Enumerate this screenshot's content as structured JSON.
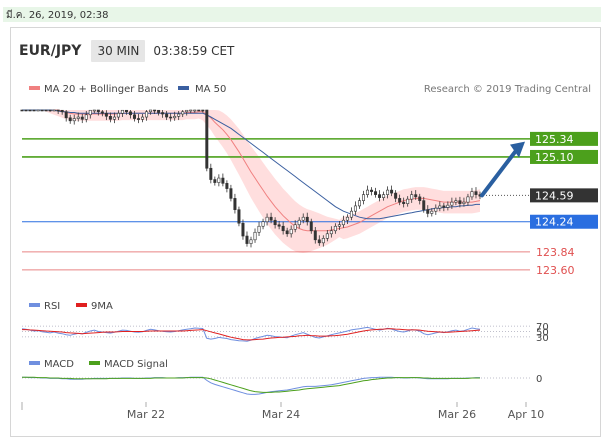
{
  "date_strip": "มี.ค. 26, 2019, 02:38",
  "header": {
    "pair": "EUR/JPY",
    "timeframe": "30 MIN",
    "time": "03:38:59 CET"
  },
  "credit": "Research © 2019 Trading Central",
  "colors": {
    "ma20": "#f08080",
    "ma50": "#3a5fa0",
    "resistance": "#4ca01c",
    "support_blue": "#2a6ee0",
    "support_red": "#e05050",
    "bollinger": "#ffd8d8",
    "rsi": "#6f8fdf",
    "nine_ma": "#e02020",
    "macd": "#6f8fdf",
    "macd_signal": "#4ca01c",
    "current_price_bg": "#333333",
    "arrow": "#2a5fa0"
  },
  "chart_data": [
    {
      "type": "candlestick",
      "legend": [
        {
          "name": "MA 20 + Bollinger Bands"
        },
        {
          "name": "MA 50"
        }
      ],
      "x_ticks": [
        "Mar 22",
        "Mar 24",
        "Mar 26",
        "Apr 10"
      ],
      "ylim": [
        123.4,
        125.75
      ],
      "levels": [
        {
          "label": "125.34",
          "value": 125.34,
          "kind": "resistance"
        },
        {
          "label": "125.10",
          "value": 125.1,
          "kind": "resistance"
        },
        {
          "label": "124.59",
          "value": 124.59,
          "kind": "current"
        },
        {
          "label": "124.24",
          "value": 124.24,
          "kind": "support_blue"
        },
        {
          "label": "123.84",
          "value": 123.84,
          "kind": "support_red"
        },
        {
          "label": "123.60",
          "value": 123.6,
          "kind": "support_red"
        }
      ],
      "candles_close": [
        125.9,
        125.88,
        125.85,
        125.83,
        125.84,
        125.8,
        125.78,
        125.75,
        125.77,
        125.72,
        125.7,
        125.62,
        125.58,
        125.61,
        125.63,
        125.6,
        125.66,
        125.72,
        125.75,
        125.7,
        125.68,
        125.64,
        125.6,
        125.63,
        125.68,
        125.72,
        125.7,
        125.66,
        125.61,
        125.6,
        125.63,
        125.7,
        125.74,
        125.72,
        125.69,
        125.67,
        125.63,
        125.62,
        125.64,
        125.67,
        125.7,
        125.72,
        125.74,
        125.77,
        125.75,
        125.74,
        124.95,
        124.8,
        124.76,
        124.82,
        124.75,
        124.68,
        124.55,
        124.4,
        124.22,
        124.05,
        123.95,
        124.0,
        124.1,
        124.18,
        124.24,
        124.3,
        124.26,
        124.2,
        124.18,
        124.12,
        124.08,
        124.14,
        124.2,
        124.26,
        124.3,
        124.24,
        124.12,
        124.0,
        123.96,
        124.02,
        124.08,
        124.12,
        124.18,
        124.2,
        124.26,
        124.3,
        124.38,
        124.45,
        124.52,
        124.6,
        124.66,
        124.64,
        124.6,
        124.56,
        124.6,
        124.66,
        124.62,
        124.55,
        124.5,
        124.48,
        124.54,
        124.6,
        124.57,
        124.52,
        124.4,
        124.35,
        124.38,
        124.42,
        124.45,
        124.43,
        124.46,
        124.5,
        124.52,
        124.48,
        124.5,
        124.57,
        124.64,
        124.6,
        124.58
      ],
      "ma20": [
        125.9,
        125.89,
        125.87,
        125.85,
        125.83,
        125.81,
        125.79,
        125.77,
        125.75,
        125.73,
        125.71,
        125.69,
        125.68,
        125.67,
        125.67,
        125.67,
        125.67,
        125.67,
        125.67,
        125.67,
        125.67,
        125.67,
        125.67,
        125.67,
        125.67,
        125.68,
        125.68,
        125.68,
        125.68,
        125.68,
        125.68,
        125.68,
        125.68,
        125.68,
        125.68,
        125.68,
        125.68,
        125.68,
        125.68,
        125.68,
        125.68,
        125.69,
        125.69,
        125.69,
        125.7,
        125.7,
        125.66,
        125.62,
        125.56,
        125.51,
        125.46,
        125.4,
        125.33,
        125.25,
        125.17,
        125.08,
        124.99,
        124.9,
        124.82,
        124.74,
        124.66,
        124.58,
        124.51,
        124.44,
        124.38,
        124.32,
        124.27,
        124.22,
        124.18,
        124.15,
        124.13,
        124.12,
        124.12,
        124.12,
        124.12,
        124.12,
        124.12,
        124.13,
        124.14,
        124.15,
        124.16,
        124.17,
        124.19,
        124.21,
        124.23,
        124.26,
        124.29,
        124.32,
        124.35,
        124.38,
        124.41,
        124.44,
        124.46,
        124.48,
        124.5,
        124.52,
        124.53,
        124.54,
        124.55,
        124.55,
        124.55,
        124.54,
        124.53,
        124.52,
        124.51,
        124.5,
        124.5,
        124.5,
        124.5,
        124.5,
        124.5,
        124.5,
        124.5,
        124.51,
        124.52
      ],
      "ma50": [
        125.8,
        125.79,
        125.78,
        125.77,
        125.76,
        125.75,
        125.74,
        125.73,
        125.72,
        125.71,
        125.7,
        125.7,
        125.69,
        125.69,
        125.68,
        125.68,
        125.68,
        125.68,
        125.68,
        125.68,
        125.68,
        125.68,
        125.68,
        125.68,
        125.68,
        125.68,
        125.68,
        125.68,
        125.68,
        125.68,
        125.68,
        125.68,
        125.68,
        125.68,
        125.68,
        125.68,
        125.68,
        125.68,
        125.68,
        125.68,
        125.68,
        125.68,
        125.68,
        125.68,
        125.68,
        125.68,
        125.66,
        125.63,
        125.6,
        125.57,
        125.54,
        125.51,
        125.48,
        125.44,
        125.4,
        125.36,
        125.32,
        125.28,
        125.24,
        125.2,
        125.16,
        125.12,
        125.08,
        125.04,
        125.0,
        124.96,
        124.92,
        124.88,
        124.84,
        124.8,
        124.76,
        124.72,
        124.68,
        124.64,
        124.6,
        124.56,
        124.52,
        124.48,
        124.44,
        124.41,
        124.38,
        124.36,
        124.34,
        124.32,
        124.3,
        124.29,
        124.28,
        124.28,
        124.28,
        124.28,
        124.29,
        124.3,
        124.31,
        124.32,
        124.33,
        124.34,
        124.35,
        124.36,
        124.37,
        124.38,
        124.39,
        124.4,
        124.41,
        124.42,
        124.42,
        124.43,
        124.43,
        124.44,
        124.44,
        124.45,
        124.45,
        124.46,
        124.46,
        124.47,
        124.47
      ],
      "forecast_arrow": {
        "from": 124.59,
        "to": 125.25
      }
    },
    {
      "type": "line",
      "legend": [
        {
          "name": "RSI"
        },
        {
          "name": "9MA"
        }
      ],
      "levels": [
        {
          "label": "70",
          "value": 70
        },
        {
          "label": "50",
          "value": 50
        },
        {
          "label": "30",
          "value": 30
        }
      ],
      "ylim": [
        0,
        100
      ],
      "series": [
        {
          "name": "RSI",
          "values": [
            60,
            58,
            55,
            52,
            53,
            49,
            47,
            45,
            48,
            44,
            42,
            38,
            36,
            40,
            43,
            41,
            47,
            52,
            55,
            50,
            48,
            46,
            44,
            47,
            51,
            55,
            54,
            51,
            48,
            47,
            49,
            54,
            58,
            56,
            53,
            51,
            49,
            48,
            50,
            53,
            56,
            58,
            60,
            63,
            62,
            61,
            25,
            22,
            24,
            28,
            26,
            24,
            20,
            18,
            16,
            15,
            14,
            18,
            24,
            28,
            32,
            36,
            34,
            31,
            30,
            28,
            27,
            33,
            38,
            42,
            46,
            40,
            34,
            28,
            26,
            30,
            34,
            38,
            42,
            45,
            48,
            52,
            56,
            58,
            60,
            63,
            65,
            62,
            58,
            55,
            58,
            62,
            59,
            54,
            50,
            48,
            52,
            57,
            55,
            51,
            42,
            38,
            41,
            45,
            48,
            46,
            49,
            53,
            55,
            51,
            53,
            58,
            63,
            60,
            58
          ]
        },
        {
          "name": "9MA",
          "values": [
            57,
            57,
            56,
            55,
            54,
            53,
            52,
            51,
            50,
            49,
            48,
            46,
            45,
            44,
            43,
            42,
            43,
            44,
            45,
            46,
            47,
            48,
            48,
            48,
            49,
            50,
            50,
            50,
            50,
            50,
            50,
            51,
            52,
            52,
            52,
            52,
            52,
            52,
            52,
            52,
            52,
            53,
            54,
            55,
            56,
            57,
            53,
            49,
            45,
            41,
            37,
            33,
            29,
            26,
            23,
            20,
            19,
            19,
            20,
            21,
            22,
            24,
            26,
            27,
            28,
            29,
            30,
            31,
            32,
            34,
            35,
            36,
            35,
            34,
            33,
            33,
            33,
            34,
            35,
            36,
            38,
            40,
            43,
            46,
            49,
            52,
            54,
            56,
            57,
            58,
            59,
            60,
            60,
            59,
            58,
            57,
            56,
            56,
            56,
            55,
            53,
            51,
            50,
            49,
            48,
            47,
            47,
            48,
            49,
            50,
            51,
            52,
            53,
            54,
            55
          ]
        }
      ]
    },
    {
      "type": "line",
      "legend": [
        {
          "name": "MACD"
        },
        {
          "name": "MACD Signal"
        }
      ],
      "levels": [
        {
          "label": "0",
          "value": 0
        }
      ],
      "ylim": [
        -0.5,
        0.2
      ],
      "series": [
        {
          "name": "MACD",
          "values": [
            0.02,
            0.02,
            0.01,
            0.01,
            0.01,
            0.0,
            0.0,
            -0.01,
            -0.01,
            -0.01,
            -0.02,
            -0.02,
            -0.03,
            -0.03,
            -0.03,
            -0.03,
            -0.02,
            -0.02,
            -0.01,
            -0.01,
            -0.01,
            -0.01,
            -0.01,
            -0.01,
            -0.01,
            0.0,
            0.0,
            0.0,
            -0.01,
            -0.01,
            -0.01,
            0.0,
            0.0,
            0.01,
            0.01,
            0.01,
            0.0,
            0.0,
            0.0,
            0.01,
            0.01,
            0.01,
            0.02,
            0.02,
            0.02,
            0.02,
            -0.06,
            -0.12,
            -0.16,
            -0.19,
            -0.22,
            -0.25,
            -0.28,
            -0.31,
            -0.34,
            -0.37,
            -0.4,
            -0.41,
            -0.41,
            -0.4,
            -0.38,
            -0.36,
            -0.34,
            -0.33,
            -0.32,
            -0.31,
            -0.3,
            -0.28,
            -0.26,
            -0.24,
            -0.22,
            -0.21,
            -0.21,
            -0.21,
            -0.2,
            -0.19,
            -0.18,
            -0.17,
            -0.15,
            -0.13,
            -0.11,
            -0.09,
            -0.07,
            -0.05,
            -0.03,
            -0.01,
            0.0,
            0.01,
            0.01,
            0.02,
            0.02,
            0.02,
            0.02,
            0.01,
            0.01,
            0.0,
            0.0,
            0.01,
            0.01,
            0.0,
            -0.01,
            -0.02,
            -0.02,
            -0.02,
            -0.02,
            -0.02,
            -0.02,
            -0.01,
            -0.01,
            -0.01,
            -0.01,
            0.0,
            0.0,
            0.01,
            0.01
          ]
        },
        {
          "name": "MACD Signal",
          "values": [
            0.02,
            0.02,
            0.02,
            0.02,
            0.01,
            0.01,
            0.01,
            0.0,
            0.0,
            0.0,
            -0.01,
            -0.01,
            -0.01,
            -0.02,
            -0.02,
            -0.02,
            -0.02,
            -0.02,
            -0.02,
            -0.02,
            -0.02,
            -0.02,
            -0.01,
            -0.01,
            -0.01,
            -0.01,
            -0.01,
            -0.01,
            -0.01,
            -0.01,
            -0.01,
            -0.01,
            -0.01,
            0.0,
            0.0,
            0.0,
            0.0,
            0.0,
            0.0,
            0.0,
            0.0,
            0.01,
            0.01,
            0.01,
            0.01,
            0.01,
            0.0,
            -0.02,
            -0.05,
            -0.08,
            -0.11,
            -0.14,
            -0.17,
            -0.2,
            -0.23,
            -0.26,
            -0.29,
            -0.32,
            -0.34,
            -0.35,
            -0.36,
            -0.36,
            -0.36,
            -0.35,
            -0.35,
            -0.34,
            -0.33,
            -0.32,
            -0.31,
            -0.3,
            -0.28,
            -0.27,
            -0.26,
            -0.25,
            -0.24,
            -0.23,
            -0.22,
            -0.21,
            -0.2,
            -0.19,
            -0.17,
            -0.15,
            -0.13,
            -0.11,
            -0.09,
            -0.07,
            -0.06,
            -0.04,
            -0.03,
            -0.02,
            -0.01,
            0.0,
            0.0,
            0.01,
            0.01,
            0.01,
            0.01,
            0.01,
            0.01,
            0.01,
            0.0,
            0.0,
            -0.01,
            -0.01,
            -0.01,
            -0.01,
            -0.01,
            -0.01,
            -0.01,
            -0.01,
            -0.01,
            -0.01,
            0.0,
            0.0,
            0.0
          ]
        }
      ]
    }
  ]
}
